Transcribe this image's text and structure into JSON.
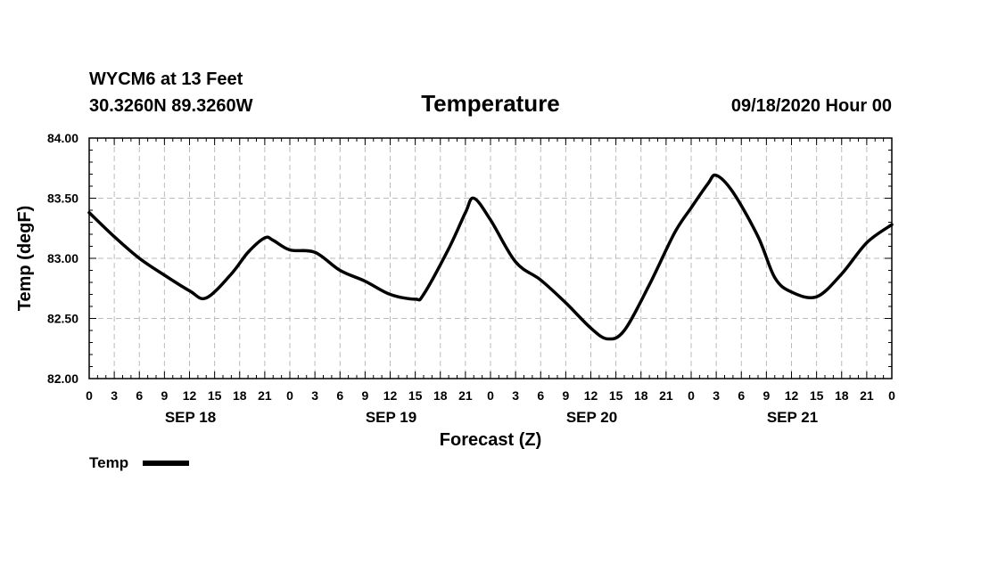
{
  "header": {
    "station": "WYCM6 at 13 Feet",
    "coords": "30.3260N 89.3260W",
    "title": "Temperature",
    "date": "09/18/2020 Hour 00"
  },
  "legend": {
    "label": "Temp"
  },
  "colors": {
    "line": "#000000",
    "grid": "#bbbbbb"
  },
  "chart_data": {
    "type": "line",
    "title": "Temperature",
    "xlabel": "Forecast (Z)",
    "ylabel": "Temp (degF)",
    "ylim": [
      82.0,
      84.0
    ],
    "xlim_hours": [
      0,
      96
    ],
    "y_ticks": [
      "82.00",
      "82.50",
      "83.00",
      "83.50",
      "84.00"
    ],
    "x_tick_labels": [
      "0",
      "3",
      "6",
      "9",
      "12",
      "15",
      "18",
      "21",
      "0",
      "3",
      "6",
      "9",
      "12",
      "15",
      "18",
      "21",
      "0",
      "3",
      "6",
      "9",
      "12",
      "15",
      "18",
      "21",
      "0",
      "3",
      "6",
      "9",
      "12",
      "15",
      "18",
      "21",
      "0"
    ],
    "date_labels": [
      {
        "label": "SEP 18",
        "hour": 12
      },
      {
        "label": "SEP 19",
        "hour": 36
      },
      {
        "label": "SEP 20",
        "hour": 60
      },
      {
        "label": "SEP 21",
        "hour": 84
      }
    ],
    "series": [
      {
        "name": "Temp",
        "hours": [
          0,
          3,
          6,
          9,
          12,
          14,
          17,
          19,
          21,
          22,
          24,
          27,
          30,
          33,
          36,
          39,
          40,
          43,
          45,
          46,
          48,
          51,
          54,
          57,
          60,
          62,
          64,
          67,
          70,
          72,
          74,
          75,
          77,
          80,
          82,
          84,
          87,
          90,
          93,
          96
        ],
        "values": [
          83.38,
          83.18,
          83.0,
          82.86,
          82.73,
          82.67,
          82.87,
          83.05,
          83.17,
          83.15,
          83.07,
          83.05,
          82.9,
          82.81,
          82.7,
          82.66,
          82.7,
          83.08,
          83.38,
          83.5,
          83.32,
          82.97,
          82.82,
          82.63,
          82.42,
          82.33,
          82.4,
          82.78,
          83.21,
          83.42,
          83.62,
          83.69,
          83.55,
          83.18,
          82.84,
          82.72,
          82.68,
          82.87,
          83.13,
          83.28
        ]
      }
    ]
  }
}
